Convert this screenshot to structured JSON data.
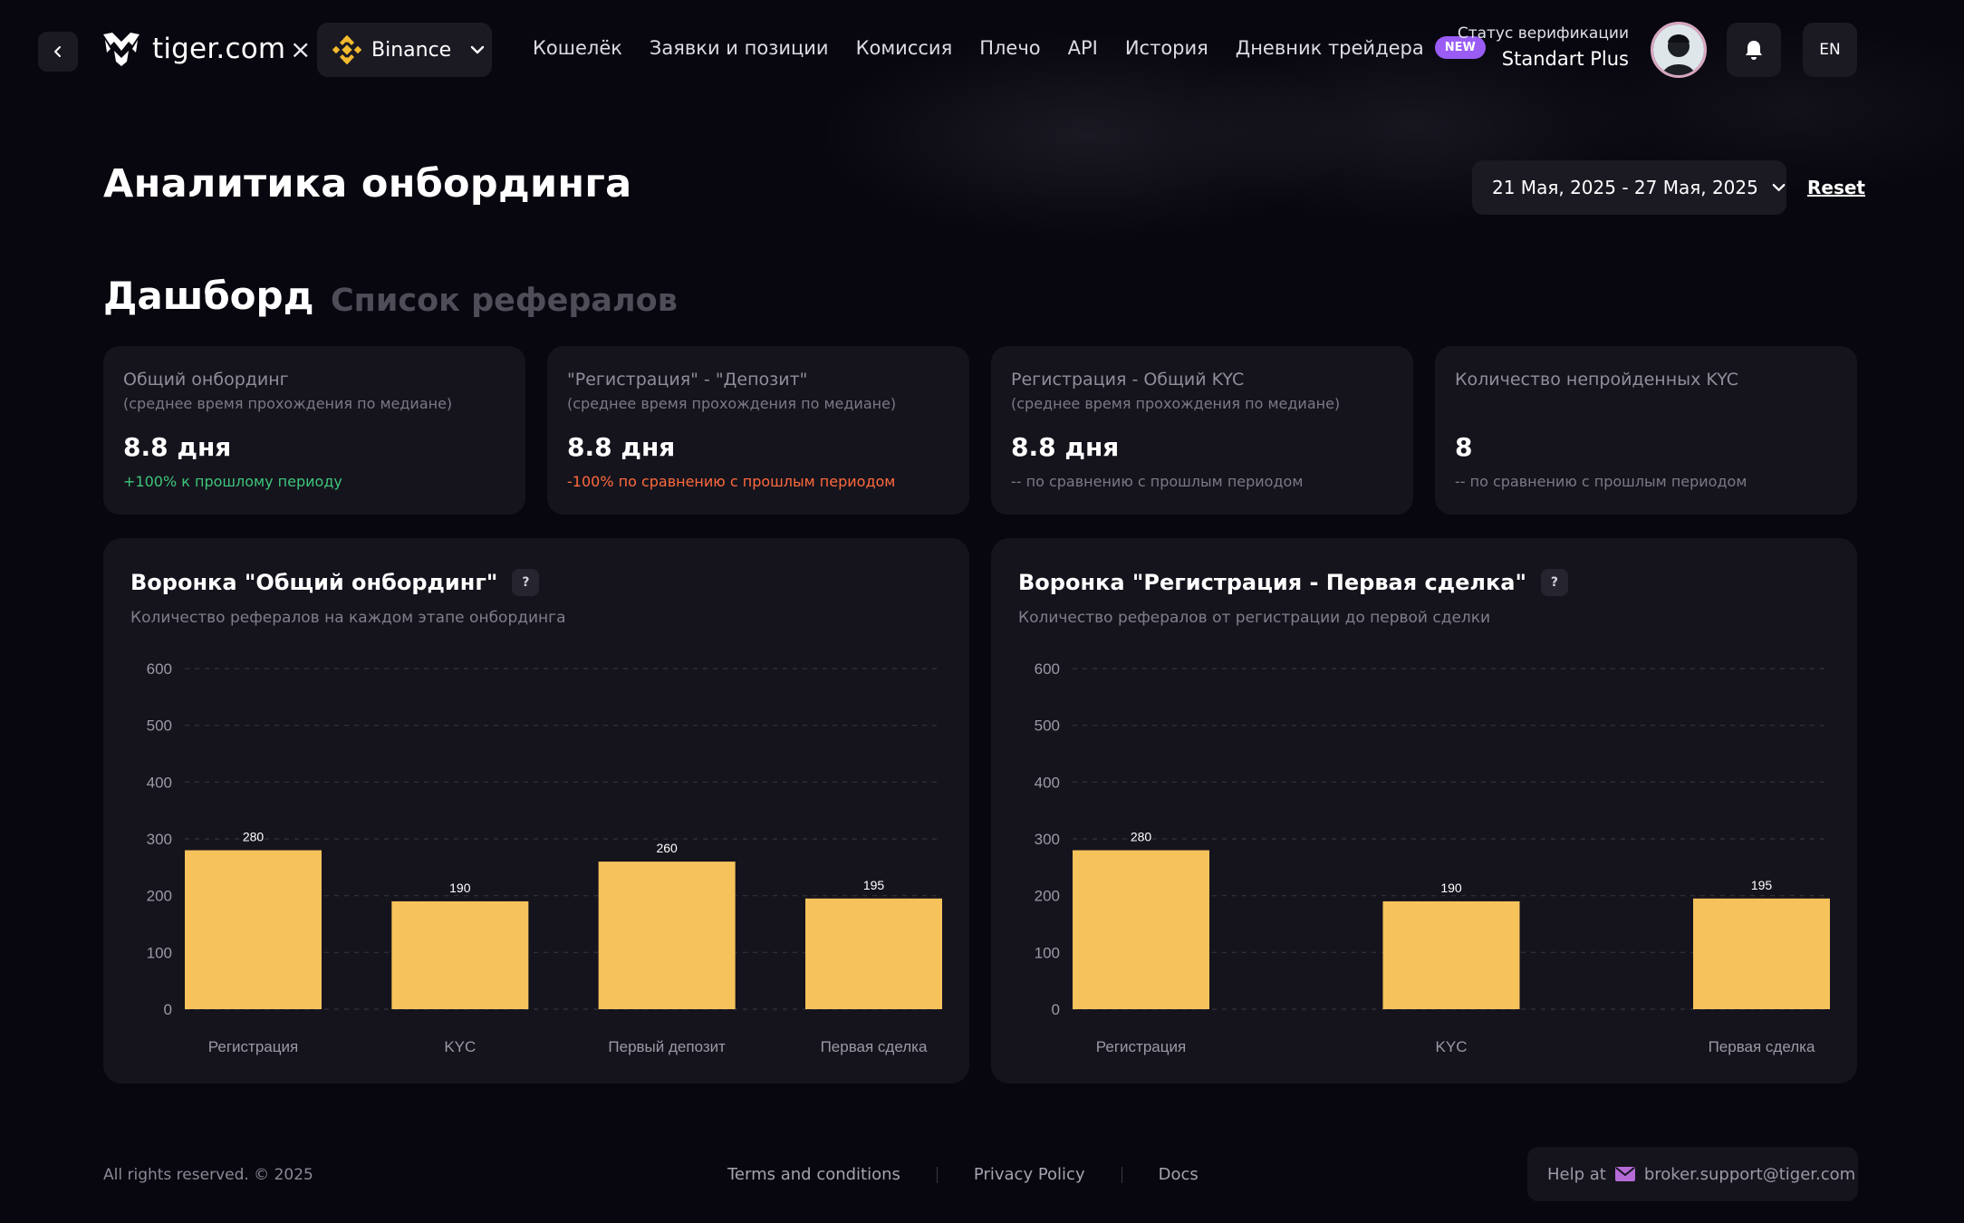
{
  "header": {
    "brand": "tiger.com",
    "separator": "×",
    "exchange": "Binance",
    "nav": [
      "Кошелёк",
      "Заявки и позиции",
      "Комиссия",
      "Плечо",
      "API",
      "История",
      "Дневник трейдера"
    ],
    "new_badge": "NEW",
    "verification_label": "Статус верификации",
    "verification_value": "Standart Plus",
    "language": "EN"
  },
  "page": {
    "title": "Аналитика онбординга",
    "date_range": "21 Мая, 2025 - 27 Мая, 2025",
    "reset": "Reset"
  },
  "tabs": {
    "active": "Дашборд",
    "inactive": "Список рефералов"
  },
  "cards": [
    {
      "title": "Общий онбординг",
      "subtitle": "(среднее время прохождения по медиане)",
      "value": "8.8 дня",
      "note": "+100% к прошлому периоду",
      "note_color": "#3ec57a"
    },
    {
      "title": "\"Регистрация\" - \"Депозит\"",
      "subtitle": "(среднее время прохождения по медиане)",
      "value": "8.8 дня",
      "note": "-100% по сравнению с прошлым периодом",
      "note_color": "#ff6a3d"
    },
    {
      "title": "Регистрация - Общий KYC",
      "subtitle": "(среднее время прохождения по медиане)",
      "value": "8.8 дня",
      "note": "-- по сравнению с прошлым периодом",
      "note_color": "#7a7985"
    },
    {
      "title": "Количество непройденных KYC",
      "subtitle": "",
      "value": "8",
      "note": "-- по сравнению с прошлым периодом",
      "note_color": "#7a7985"
    }
  ],
  "chart_data": [
    {
      "type": "bar",
      "title": "Воронка \"Общий онбординг\"",
      "subtitle": "Количество рефералов на каждом этапе онбординга",
      "categories": [
        "Регистрация",
        "KYC",
        "Первый депозит",
        "Первая сделка"
      ],
      "values": [
        280,
        190,
        260,
        195
      ],
      "ylim": [
        0,
        600
      ],
      "yticks": [
        0,
        100,
        200,
        300,
        400,
        500,
        600
      ],
      "grid": true,
      "bar_color": "#f5c25c"
    },
    {
      "type": "bar",
      "title": "Воронка \"Регистрация - Первая сделка\"",
      "subtitle": "Количество рефералов от регистрации до первой сделки",
      "categories": [
        "Регистрация",
        "KYC",
        "Первая сделка"
      ],
      "values": [
        280,
        190,
        195
      ],
      "ylim": [
        0,
        600
      ],
      "yticks": [
        0,
        100,
        200,
        300,
        400,
        500,
        600
      ],
      "grid": true,
      "bar_color": "#f5c25c"
    }
  ],
  "footer": {
    "copyright": "All rights reserved. © 2025",
    "links": [
      "Terms and conditions",
      "Privacy Policy",
      "Docs"
    ],
    "help_prefix": "Help at",
    "help_email": "broker.support@tiger.com"
  },
  "icons": {
    "back": "chevron-left-icon",
    "logo": "tiger-logo-icon",
    "exchange": "binance-icon",
    "dropdown": "chevron-down-icon",
    "bell": "bell-icon",
    "help": "question-icon",
    "mail": "mail-icon"
  }
}
